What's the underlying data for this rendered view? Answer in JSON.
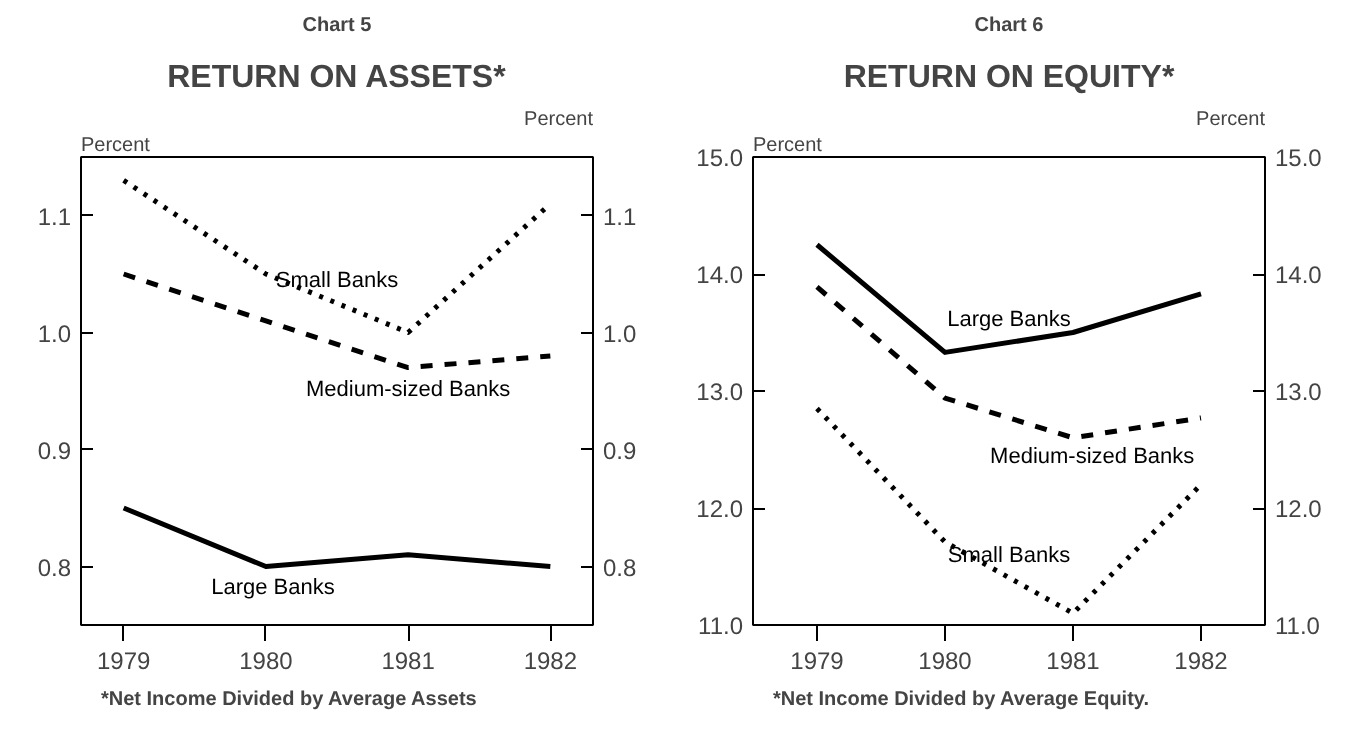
{
  "chart_data": [
    {
      "type": "line",
      "subtitle": "Chart 5",
      "title": "RETURN ON ASSETS*",
      "ylabel": "Percent",
      "y2label": "Percent",
      "x": [
        1979,
        1980,
        1981,
        1982
      ],
      "xlim": [
        1978.7,
        1982.3
      ],
      "xticks": [
        1979,
        1980,
        1981,
        1982
      ],
      "ylim": [
        0.75,
        1.15
      ],
      "yticks": [
        0.8,
        0.9,
        {
          "value": 1.0,
          "label": "1.0"
        },
        1.1
      ],
      "y2lim": [
        0.75,
        1.15
      ],
      "y2ticks": [
        0.8,
        0.9,
        {
          "value": 1.0,
          "label": "1.0"
        },
        1.1
      ],
      "grid": false,
      "marker": "none",
      "series": [
        {
          "name": "Small Banks",
          "color": "#000000",
          "line_style": "dotted",
          "values": [
            1.13,
            1.05,
            1.0,
            1.11
          ]
        },
        {
          "name": "Medium-sized Banks",
          "color": "#000000",
          "line_style": "dashed",
          "values": [
            1.05,
            1.01,
            0.97,
            0.98
          ]
        },
        {
          "name": "Large Banks",
          "color": "#000000",
          "line_style": "solid",
          "values": [
            0.85,
            0.8,
            0.81,
            0.8
          ]
        }
      ],
      "annotations": [
        "*Net Income Divided by Average Assets"
      ]
    },
    {
      "type": "line",
      "subtitle": "Chart 6",
      "title": "RETURN ON EQUITY*",
      "ylabel": "Percent",
      "y2label": "Percent",
      "x": [
        1979,
        1980,
        1981,
        1982
      ],
      "xlim": [
        1978.5,
        1982.5
      ],
      "xticks": [
        1979,
        1980,
        1981,
        1982
      ],
      "ylim": [
        11.0,
        15.0
      ],
      "yticks": [
        {
          "value": 11,
          "label": "11.0"
        },
        {
          "value": 12,
          "label": "12.0"
        },
        {
          "value": 13,
          "label": "13.0"
        },
        {
          "value": 14,
          "label": "14.0"
        },
        {
          "value": 15,
          "label": "15.0"
        }
      ],
      "y2lim": [
        11.0,
        15.0
      ],
      "y2ticks": [
        {
          "value": 11,
          "label": "11.0"
        },
        {
          "value": 12,
          "label": "12.0"
        },
        {
          "value": 13,
          "label": "13.0"
        },
        {
          "value": 14,
          "label": "14.0"
        },
        {
          "value": 15,
          "label": "15.0"
        }
      ],
      "grid": false,
      "marker": "none",
      "series": [
        {
          "name": "Large Banks",
          "color": "#000000",
          "line_style": "solid",
          "values": [
            14.25,
            13.33,
            13.5,
            13.83
          ]
        },
        {
          "name": "Medium-sized Banks",
          "color": "#000000",
          "line_style": "dashed",
          "values": [
            13.89,
            12.94,
            12.6,
            12.77
          ]
        },
        {
          "name": "Small Banks",
          "color": "#000000",
          "line_style": "dotted",
          "values": [
            12.85,
            11.71,
            11.1,
            12.2
          ]
        }
      ],
      "annotations": [
        "*Net Income Divided by Average Equity."
      ]
    }
  ]
}
